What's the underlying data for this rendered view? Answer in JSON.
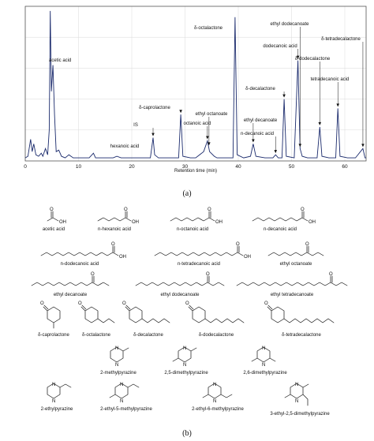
{
  "chart_data": {
    "type": "line",
    "title": "",
    "xlabel": "Retention time (min)",
    "ylabel": "",
    "xlim": [
      0,
      64
    ],
    "ylim": [
      0,
      100
    ],
    "xticks": [
      0,
      10,
      20,
      30,
      40,
      50,
      60
    ],
    "grid": true,
    "series": [
      {
        "values": [
          [
            0,
            2
          ],
          [
            0.5,
            3
          ],
          [
            1,
            14
          ],
          [
            1.3,
            6
          ],
          [
            1.6,
            11
          ],
          [
            2,
            4
          ],
          [
            2.5,
            3
          ],
          [
            3,
            5
          ],
          [
            3.3,
            3
          ],
          [
            3.8,
            8
          ],
          [
            4.2,
            4
          ],
          [
            4.5,
            20
          ],
          [
            4.7,
            97
          ],
          [
            4.9,
            45
          ],
          [
            5.2,
            62
          ],
          [
            5.5,
            30
          ],
          [
            5.8,
            6
          ],
          [
            6.3,
            7
          ],
          [
            6.8,
            3
          ],
          [
            7.5,
            2
          ],
          [
            8.2,
            4
          ],
          [
            9,
            2
          ],
          [
            10,
            2
          ],
          [
            11,
            2
          ],
          [
            12,
            2
          ],
          [
            12.8,
            5
          ],
          [
            13.2,
            2
          ],
          [
            15,
            2
          ],
          [
            16.5,
            2
          ],
          [
            17.2,
            3
          ],
          [
            18,
            2
          ],
          [
            20,
            2
          ],
          [
            22,
            2
          ],
          [
            23.5,
            2
          ],
          [
            24,
            15
          ],
          [
            24.3,
            4
          ],
          [
            25,
            2
          ],
          [
            27,
            2
          ],
          [
            28.8,
            2
          ],
          [
            29.2,
            30
          ],
          [
            29.6,
            3
          ],
          [
            31,
            2
          ],
          [
            32,
            2
          ],
          [
            33.5,
            6
          ],
          [
            34.2,
            13
          ],
          [
            34.6,
            6
          ],
          [
            35.5,
            3
          ],
          [
            36,
            2
          ],
          [
            38,
            2
          ],
          [
            39,
            2
          ],
          [
            39.4,
            93
          ],
          [
            39.8,
            4
          ],
          [
            41,
            2
          ],
          [
            42.3,
            3
          ],
          [
            42.8,
            11
          ],
          [
            43.3,
            3
          ],
          [
            45,
            2
          ],
          [
            46.5,
            2
          ],
          [
            47,
            4
          ],
          [
            47.5,
            2
          ],
          [
            48.2,
            2
          ],
          [
            48.6,
            40
          ],
          [
            49,
            3
          ],
          [
            50.5,
            2
          ],
          [
            51.2,
            65
          ],
          [
            51.6,
            8
          ],
          [
            52,
            3
          ],
          [
            53,
            2
          ],
          [
            54.8,
            2
          ],
          [
            55.3,
            22
          ],
          [
            55.7,
            3
          ],
          [
            57,
            2
          ],
          [
            58.3,
            2
          ],
          [
            58.7,
            34
          ],
          [
            59.1,
            3
          ],
          [
            60.5,
            2
          ],
          [
            62,
            2
          ],
          [
            63.4,
            8
          ],
          [
            63.8,
            2
          ],
          [
            64,
            2
          ]
        ]
      }
    ],
    "annotations": [
      {
        "label": "acetic acid",
        "x": 5.2,
        "y": 62
      },
      {
        "label": "δ-caprolactone",
        "x": 29.2,
        "y": 30
      },
      {
        "label": "IS",
        "x": 24.0,
        "y": 15
      },
      {
        "label": "hexanoic acid",
        "x": 23.7,
        "y": 7
      },
      {
        "label": "octanoic acid",
        "x": 34.2,
        "y": 13
      },
      {
        "label": "ethyl octanoate",
        "x": 34.5,
        "y": 9
      },
      {
        "label": "δ-octalactone",
        "x": 39.4,
        "y": 93
      },
      {
        "label": "ethyl decanoate",
        "x": 42.8,
        "y": 11
      },
      {
        "label": "δ-decalactone",
        "x": 48.6,
        "y": 40
      },
      {
        "label": "n-decanoic acid",
        "x": 47.0,
        "y": 4
      },
      {
        "label": "ethyl dodecanoate",
        "x": 51.6,
        "y": 8
      },
      {
        "label": "dodecanoic acid",
        "x": 51.2,
        "y": 65
      },
      {
        "label": "δ-dodecalactone",
        "x": 55.3,
        "y": 22
      },
      {
        "label": "tetradecanoic acid",
        "x": 58.7,
        "y": 34
      },
      {
        "label": "δ-tetradecalactone",
        "x": 63.4,
        "y": 8
      }
    ]
  },
  "figure": {
    "panel_a_caption": "(a)",
    "panel_b_caption": "(b)"
  },
  "compounds": [
    {
      "id": "acetic",
      "name": "acetic acid"
    },
    {
      "id": "hexanoic",
      "name": "n-hexanoic acid"
    },
    {
      "id": "octanoic",
      "name": "n-octanoic acid"
    },
    {
      "id": "decanoic",
      "name": "n-decanoic acid"
    },
    {
      "id": "dodecanoic",
      "name": "n-dodecanoic acid"
    },
    {
      "id": "tetradecanoic",
      "name": "n-tetradecanoic acid"
    },
    {
      "id": "ethyl_octanoate",
      "name": "ethyl octanoate"
    },
    {
      "id": "ethyl_decanoate",
      "name": "ethyl decanoate"
    },
    {
      "id": "ethyl_dodecanoate",
      "name": "ethyl dodecanoate"
    },
    {
      "id": "ethyl_tetradecanoate",
      "name": "ethyl tetradecanoate"
    },
    {
      "id": "caprolactone",
      "name": "δ-caprolactone"
    },
    {
      "id": "octalactone",
      "name": "δ-octalactone"
    },
    {
      "id": "decalactone",
      "name": "δ-decalactone"
    },
    {
      "id": "dodecalactone",
      "name": "δ-dodecalactone"
    },
    {
      "id": "tetradecalactone",
      "name": "δ-tetradecalactone"
    },
    {
      "id": "methylpyrazine",
      "name": "2-methylpyrazine"
    },
    {
      "id": "dimethyl25",
      "name": "2,5-dimethylpyrazine"
    },
    {
      "id": "dimethyl26",
      "name": "2,6-dimethylpyrazine"
    },
    {
      "id": "ethylpyrazine",
      "name": "2-ethylpyrazine"
    },
    {
      "id": "ethyl5methyl",
      "name": "2-ethyl-5-methylpyrazine"
    },
    {
      "id": "ethyl6methyl",
      "name": "2-ethyl-6-methylpyrazine"
    },
    {
      "id": "ethyldimethyl",
      "name": "3-ethyl-2,5-dimethylpyrazine"
    }
  ],
  "atoms": {
    "O": "O",
    "OH": "OH",
    "N": "N"
  },
  "colors": {
    "trace": "#1a2a6c",
    "text": "#111111",
    "frame": "#555555",
    "grid": "#d9d9d9"
  }
}
